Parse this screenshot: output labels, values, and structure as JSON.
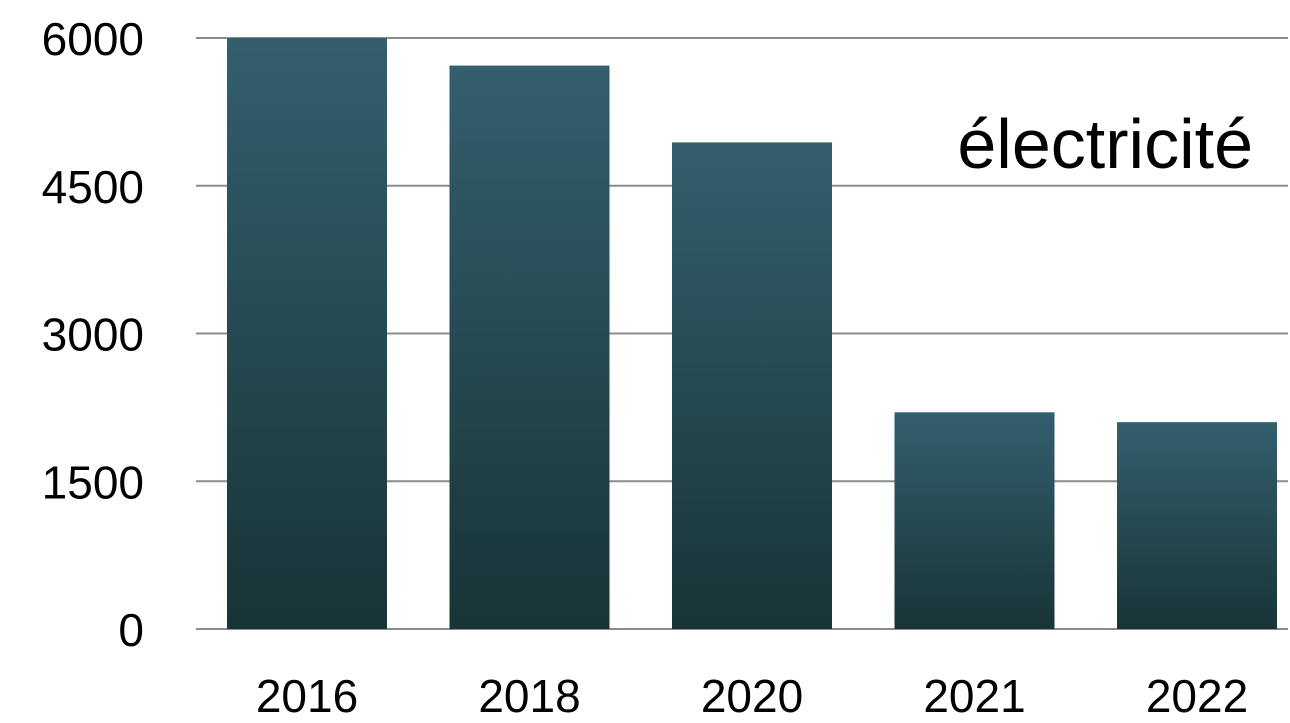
{
  "chart_data": {
    "type": "bar",
    "title": "électricité",
    "categories": [
      "2016",
      "2018",
      "2020",
      "2021",
      "2022"
    ],
    "values": [
      6000,
      5720,
      4940,
      2200,
      2100
    ],
    "xlabel": "",
    "ylabel": "",
    "ylim": [
      0,
      6000
    ],
    "yticks": [
      0,
      1500,
      3000,
      4500,
      6000
    ],
    "ytick_labels": [
      "0",
      "1500",
      "3000",
      "4500",
      "6000"
    ],
    "grid": true,
    "legend": "none",
    "colors": {
      "bar_top": "#335f6e",
      "bar_bottom": "#183436",
      "grid": "#8c8c8c",
      "text": "#000000"
    }
  }
}
